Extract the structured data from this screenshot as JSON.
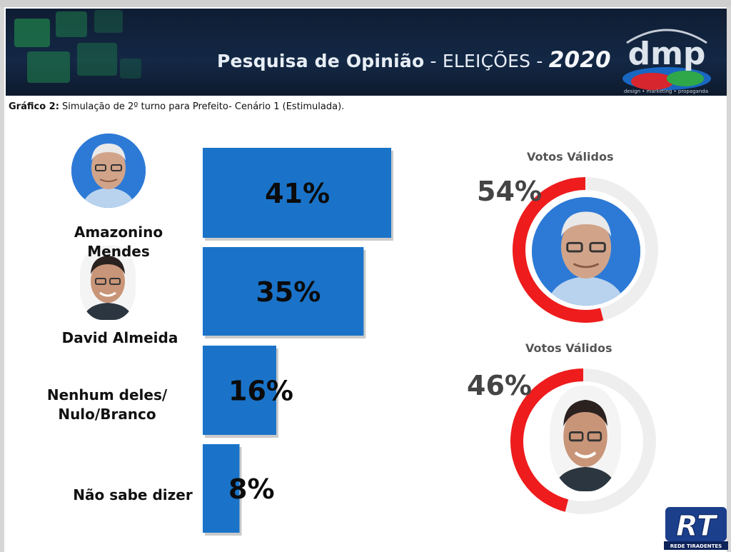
{
  "header": {
    "title_bold": "Pesquisa de Opinião",
    "title_rest": " - ELEIÇÕES - ",
    "title_year": "2020",
    "logo_text": "dmp",
    "logo_tagline": "design • marketing • propaganda"
  },
  "caption": {
    "bold": "Gráfico 2:",
    "text": " Simulação de 2º turno para Prefeito- Cenário 1 (Estimulada)."
  },
  "chart_data": [
    {
      "type": "bar",
      "orientation": "horizontal",
      "categories": [
        "Amazonino Mendes",
        "David Almeida",
        "Nenhum deles/ Nulo/Branco",
        "Não sabe dizer"
      ],
      "values": [
        41,
        35,
        16,
        8
      ],
      "value_labels": [
        "41%",
        "35%",
        "16%",
        "8%"
      ],
      "xlim": [
        0,
        41
      ],
      "color": "#1a73c8"
    },
    {
      "type": "pie",
      "title": "Votos Válidos",
      "values": [
        54,
        46
      ],
      "value_label": "54%",
      "accent": "#ee1c1c"
    },
    {
      "type": "pie",
      "title": "Votos Válidos",
      "values": [
        46,
        54
      ],
      "value_label": "46%",
      "accent": "#ee1c1c"
    }
  ],
  "labels": {
    "amazonino": "Amazonino Mendes",
    "david": "David Almeida",
    "nenhum_line1": "Nenhum deles/",
    "nenhum_line2": "Nulo/Branco",
    "nao_sabe": "Não sabe dizer"
  },
  "footer": {
    "rt_logo_text": "RT",
    "rt_logo_sub": "REDE TIRADENTES"
  }
}
